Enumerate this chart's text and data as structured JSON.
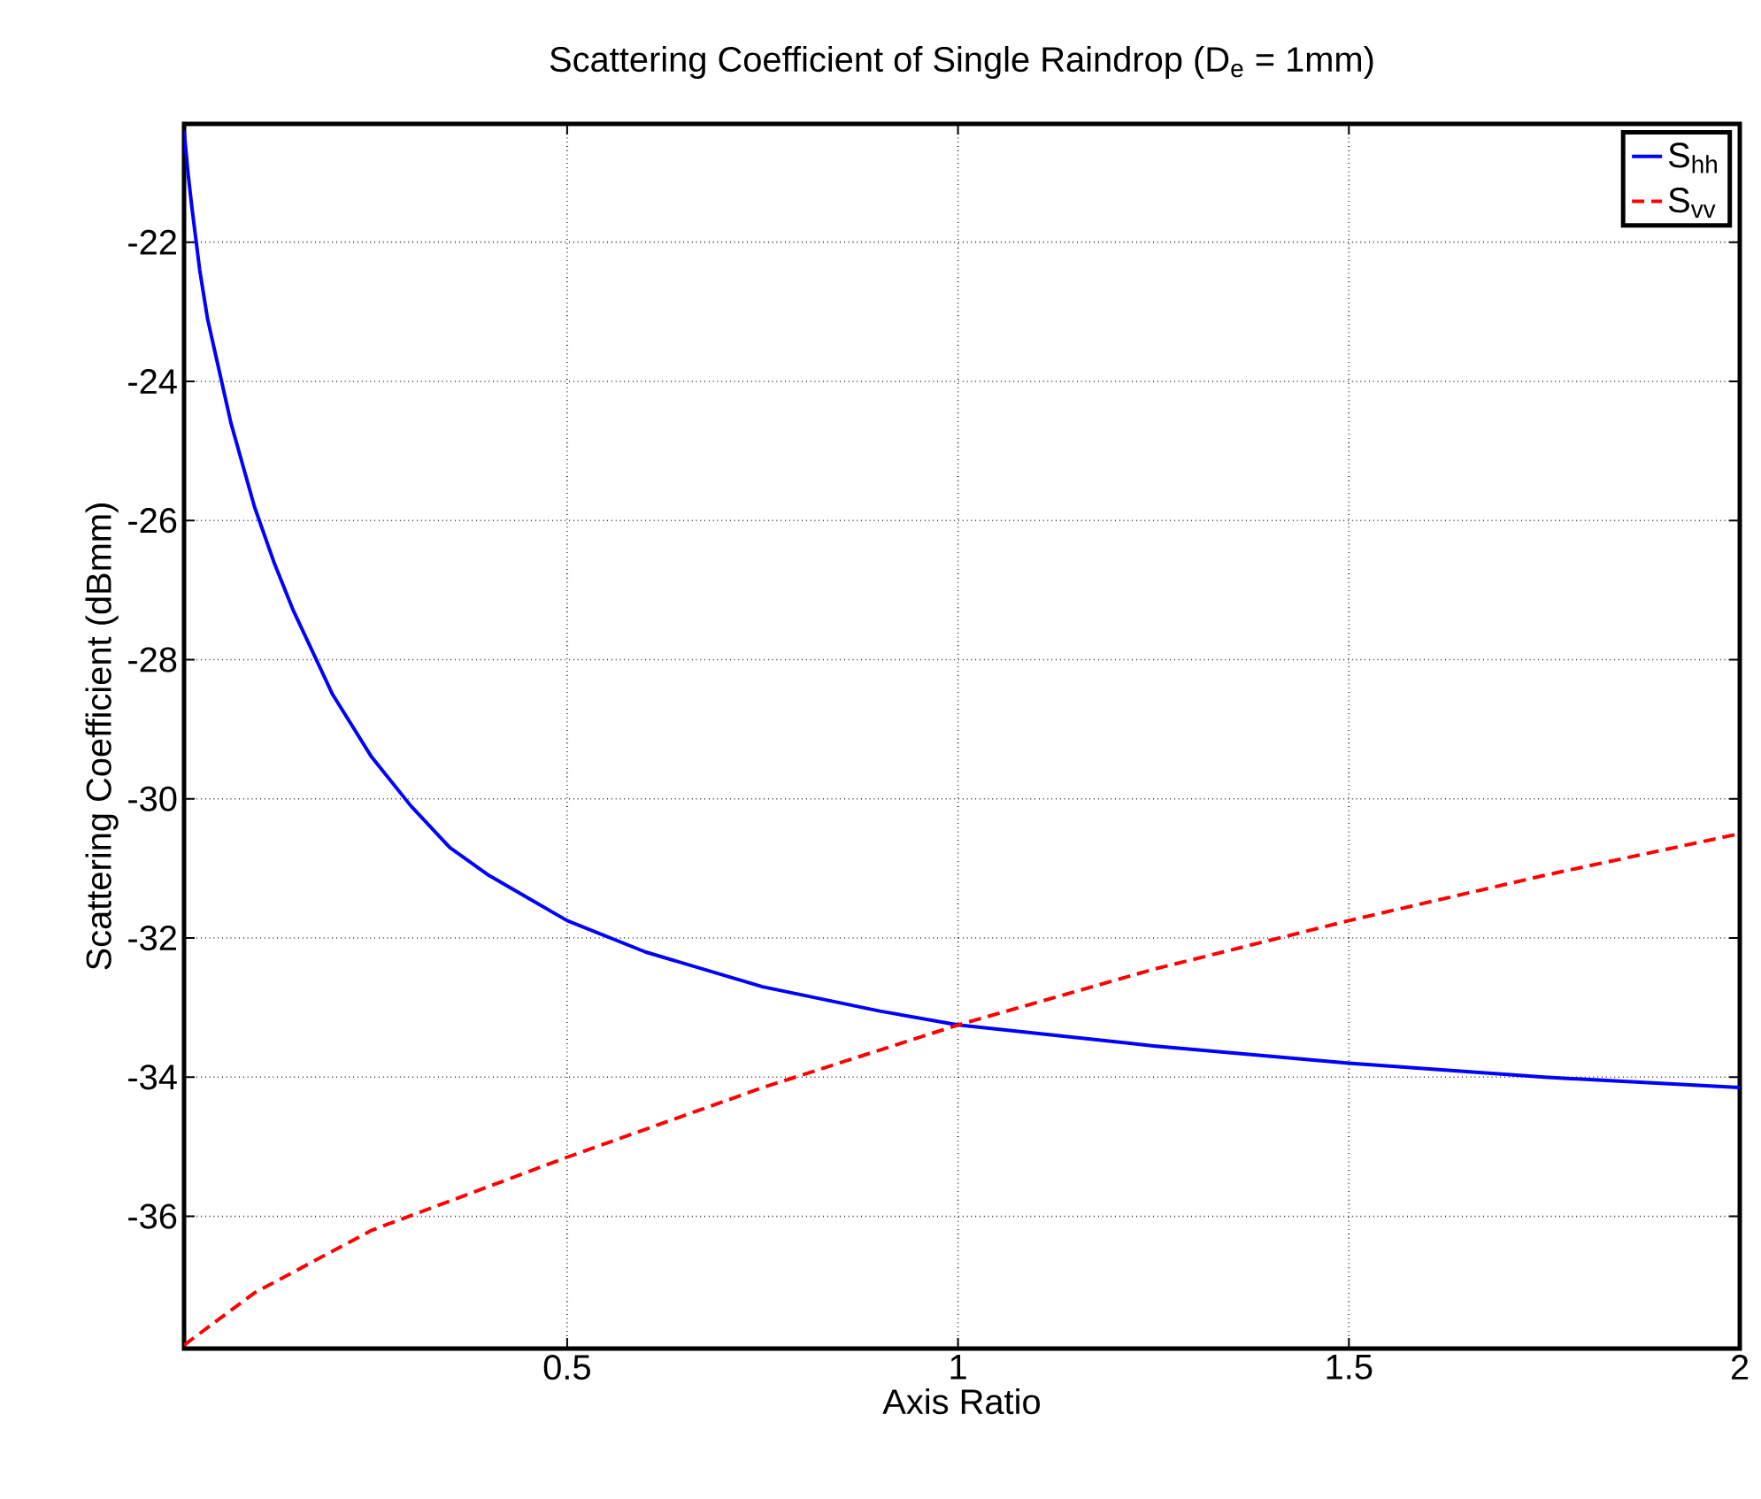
{
  "chart_data": {
    "type": "line",
    "title": "Scattering Coefficient of Single Raindrop (D$_{e}$ = 1mm)",
    "xlabel": "Axis Ratio",
    "ylabel": "Scattering Coefficient (dBmm)",
    "xlim": [
      0.01,
      2
    ],
    "ylim": [
      -37.9,
      -20.3
    ],
    "xticks": [
      0.5,
      1,
      1.5,
      2
    ],
    "yticks": [
      -36,
      -34,
      -32,
      -30,
      -28,
      -26,
      -24,
      -22
    ],
    "grid": true,
    "legend": "top right",
    "marker": "none",
    "series": [
      {
        "name": "S$_{hh}$",
        "color": "#0000ff",
        "line_style": "solid",
        "x": [
          0.01,
          0.015,
          0.02,
          0.03,
          0.04,
          0.05,
          0.07,
          0.1,
          0.125,
          0.15,
          0.175,
          0.2,
          0.25,
          0.3,
          0.35,
          0.4,
          0.5,
          0.6,
          0.75,
          0.9,
          1,
          1.25,
          1.5,
          1.75,
          2
        ],
        "values": [
          -20.4,
          -21.0,
          -21.5,
          -22.4,
          -23.1,
          -23.6,
          -24.6,
          -25.8,
          -26.6,
          -27.3,
          -27.9,
          -28.5,
          -29.4,
          -30.1,
          -30.7,
          -31.1,
          -31.75,
          -32.2,
          -32.7,
          -33.05,
          -33.25,
          -33.55,
          -33.8,
          -34.0,
          -34.15
        ]
      },
      {
        "name": "S$_{vv}$",
        "color": "#ff0000",
        "line_style": "dashed",
        "x": [
          0.01,
          0.1,
          0.25,
          0.5,
          0.75,
          1,
          1.25,
          1.5,
          1.75,
          2
        ],
        "values": [
          -37.85,
          -37.1,
          -36.2,
          -35.15,
          -34.15,
          -33.25,
          -32.45,
          -31.75,
          -31.1,
          -30.5
        ]
      }
    ]
  }
}
